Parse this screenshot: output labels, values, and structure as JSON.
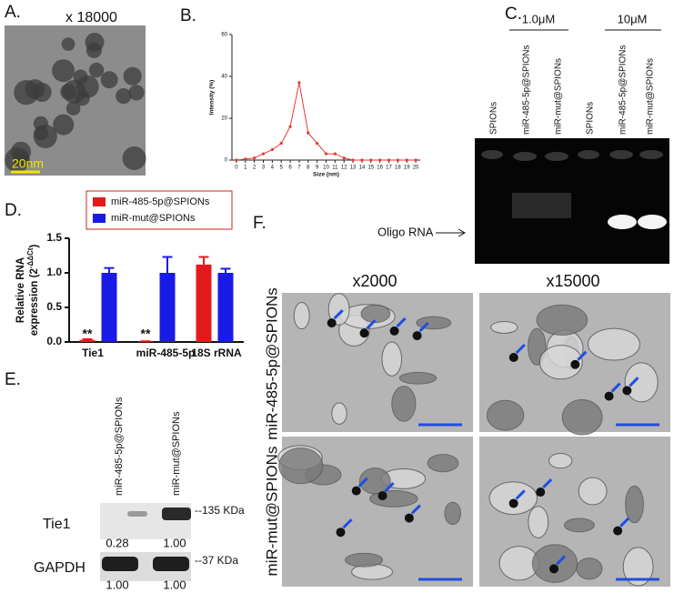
{
  "panel_a": {
    "label": "A.",
    "magnification": "x 18000",
    "scale_bar": "20nm"
  },
  "panel_c": {
    "label": "C.",
    "groups": [
      "1.0μM",
      "10μM"
    ],
    "lanes": [
      "SPIONs",
      "miR-485-5p@SPIONs",
      "miR-mut@SPIONs",
      "SPIONs",
      "miR-485-5p@SPIONs",
      "miR-mut@SPIONs"
    ],
    "band_label": "Oligo RNA"
  },
  "panel_e": {
    "label": "E.",
    "lanes": [
      "miR-485-5p@SPIONs",
      "miR-mut@SPIONs"
    ],
    "rows": [
      {
        "name": "Tie1",
        "size": "--135 KDa",
        "quantities": [
          "0.28",
          "1.00"
        ]
      },
      {
        "name": "GAPDH",
        "size": "--37 KDa",
        "quantities": [
          "1.00",
          "1.00"
        ]
      }
    ]
  },
  "panel_f": {
    "label": "F.",
    "columns": [
      "x2000",
      "x15000"
    ],
    "rows": [
      "miR-485-5p@SPIONs",
      "miR-mut@SPIONs"
    ]
  },
  "chart_data": [
    {
      "type": "line",
      "panel": "B.",
      "xlabel": "Size (nm)",
      "ylabel": "Intensity (%)",
      "x": [
        0,
        1,
        2,
        3,
        4,
        5,
        6,
        7,
        8,
        9,
        10,
        11,
        12,
        13,
        14,
        15,
        16,
        17,
        18,
        19,
        20
      ],
      "values": [
        0,
        0.5,
        1,
        3,
        5,
        8,
        16,
        37,
        13,
        8,
        3,
        3,
        1,
        0,
        0,
        0,
        0,
        0,
        0,
        0,
        0
      ],
      "color": "#e53935",
      "xlim": [
        -0.5,
        20.5
      ],
      "xticks": [
        0,
        1,
        2,
        3,
        4,
        5,
        6,
        7,
        8,
        9,
        10,
        11,
        12,
        13,
        14,
        15,
        16,
        17,
        18,
        19,
        20
      ],
      "ylim": [
        0,
        60
      ],
      "yticks": [
        0,
        20,
        40,
        60
      ]
    },
    {
      "type": "bar",
      "panel": "D.",
      "ylabel": [
        "Relative RNA",
        "expression (2",
        "-ΔΔCt",
        ")"
      ],
      "categories": [
        "Tie1",
        "miR-485-5p",
        "18S rRNA"
      ],
      "series": [
        {
          "name": "miR-485-5p@SPIONs",
          "color": "#e31a1c",
          "values": [
            0.03,
            0.01,
            1.12
          ],
          "errors": [
            0.01,
            0,
            0.11
          ]
        },
        {
          "name": "miR-mut@SPIONs",
          "color": "#1a1ae6",
          "values": [
            1.0,
            1.0,
            1.0
          ],
          "errors": [
            0.07,
            0.23,
            0.06
          ]
        }
      ],
      "annotations": [
        "**",
        "**"
      ],
      "ylim": [
        0,
        1.5
      ],
      "yticks": [
        {
          "value": 0,
          "label": "0.0"
        },
        0.5,
        {
          "value": 1,
          "label": "1.0"
        },
        1.5
      ]
    }
  ]
}
